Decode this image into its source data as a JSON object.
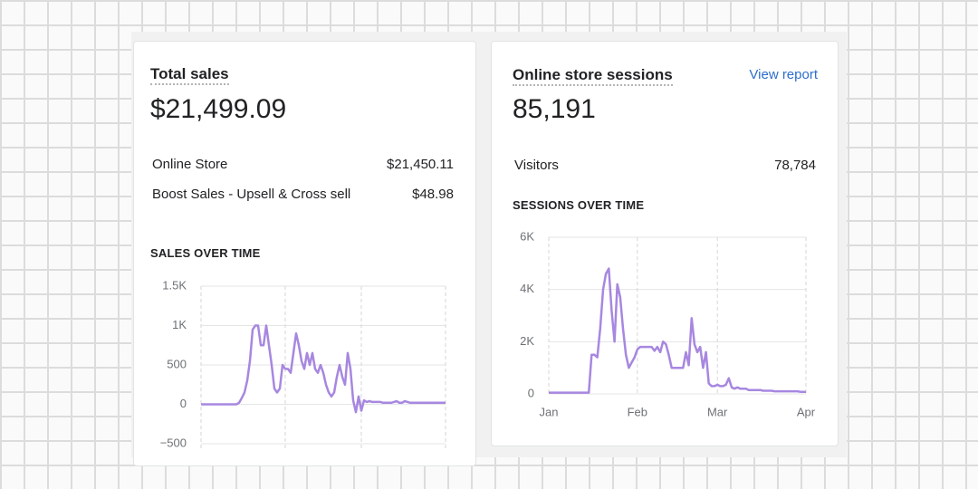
{
  "cards": [
    {
      "title": "Total sales",
      "total": "$21,499.09",
      "rows": [
        {
          "label": "Online Store",
          "value": "$21,450.11"
        },
        {
          "label": "Boost Sales - Upsell & Cross sell",
          "value": "$48.98"
        }
      ],
      "chart": {
        "type": "line",
        "title": "SALES OVER TIME",
        "color": "#a787e0",
        "values": [
          0,
          0,
          0,
          0,
          0,
          0,
          0,
          0,
          0,
          0,
          0,
          0,
          0,
          0,
          20,
          80,
          150,
          300,
          550,
          950,
          1000,
          1000,
          750,
          750,
          1000,
          750,
          500,
          200,
          150,
          200,
          500,
          450,
          450,
          400,
          650,
          900,
          750,
          550,
          450,
          650,
          500,
          650,
          450,
          400,
          500,
          400,
          250,
          150,
          100,
          150,
          350,
          500,
          350,
          250,
          650,
          450,
          50,
          -100,
          100,
          -80,
          50,
          30,
          40,
          30,
          30,
          30,
          30,
          20,
          20,
          20,
          20,
          30,
          40,
          20,
          20,
          40,
          30,
          20,
          20,
          20,
          20,
          20,
          20,
          20,
          20,
          20,
          20,
          20,
          20,
          20,
          20
        ],
        "xlim": [
          0,
          90
        ],
        "xgrid": [
          0,
          31,
          59,
          90
        ],
        "ylim": [
          -500,
          1500
        ],
        "yticks": [
          {
            "value": -500,
            "label": "−500"
          },
          0,
          500,
          {
            "value": 1000,
            "label": "1K"
          },
          {
            "value": 1500,
            "label": "1.5K"
          }
        ]
      }
    },
    {
      "title": "Online store sessions",
      "link": "View report",
      "total": "85,191",
      "rows": [
        {
          "label": "Visitors",
          "value": "78,784"
        }
      ],
      "chart": {
        "type": "line",
        "title": "SESSIONS OVER TIME",
        "color": "#a787e0",
        "values": [
          50,
          50,
          50,
          50,
          50,
          50,
          50,
          50,
          50,
          50,
          50,
          50,
          50,
          50,
          50,
          1500,
          1500,
          1400,
          2500,
          4000,
          4600,
          4800,
          3200,
          2000,
          4200,
          3700,
          2500,
          1500,
          1000,
          1200,
          1400,
          1700,
          1800,
          1800,
          1800,
          1800,
          1800,
          1650,
          1800,
          1600,
          2000,
          1900,
          1500,
          1000,
          1000,
          1000,
          1000,
          1000,
          1600,
          1100,
          2900,
          1900,
          1600,
          1800,
          1000,
          1600,
          400,
          300,
          300,
          350,
          300,
          300,
          350,
          600,
          250,
          200,
          250,
          200,
          200,
          200,
          150,
          150,
          150,
          150,
          150,
          120,
          120,
          120,
          120,
          100,
          100,
          100,
          100,
          100,
          100,
          100,
          100,
          100,
          80,
          80,
          80
        ],
        "xlim": [
          0,
          90
        ],
        "xticks": [
          {
            "value": 0,
            "label": "Jan"
          },
          {
            "value": 31,
            "label": "Feb"
          },
          {
            "value": 59,
            "label": "Mar"
          },
          {
            "value": 90,
            "label": "Apr"
          }
        ],
        "ylim": [
          0,
          6000
        ],
        "yticks": [
          0,
          {
            "value": 2000,
            "label": "2K"
          },
          {
            "value": 4000,
            "label": "4K"
          },
          {
            "value": 6000,
            "label": "6K"
          }
        ]
      }
    }
  ]
}
